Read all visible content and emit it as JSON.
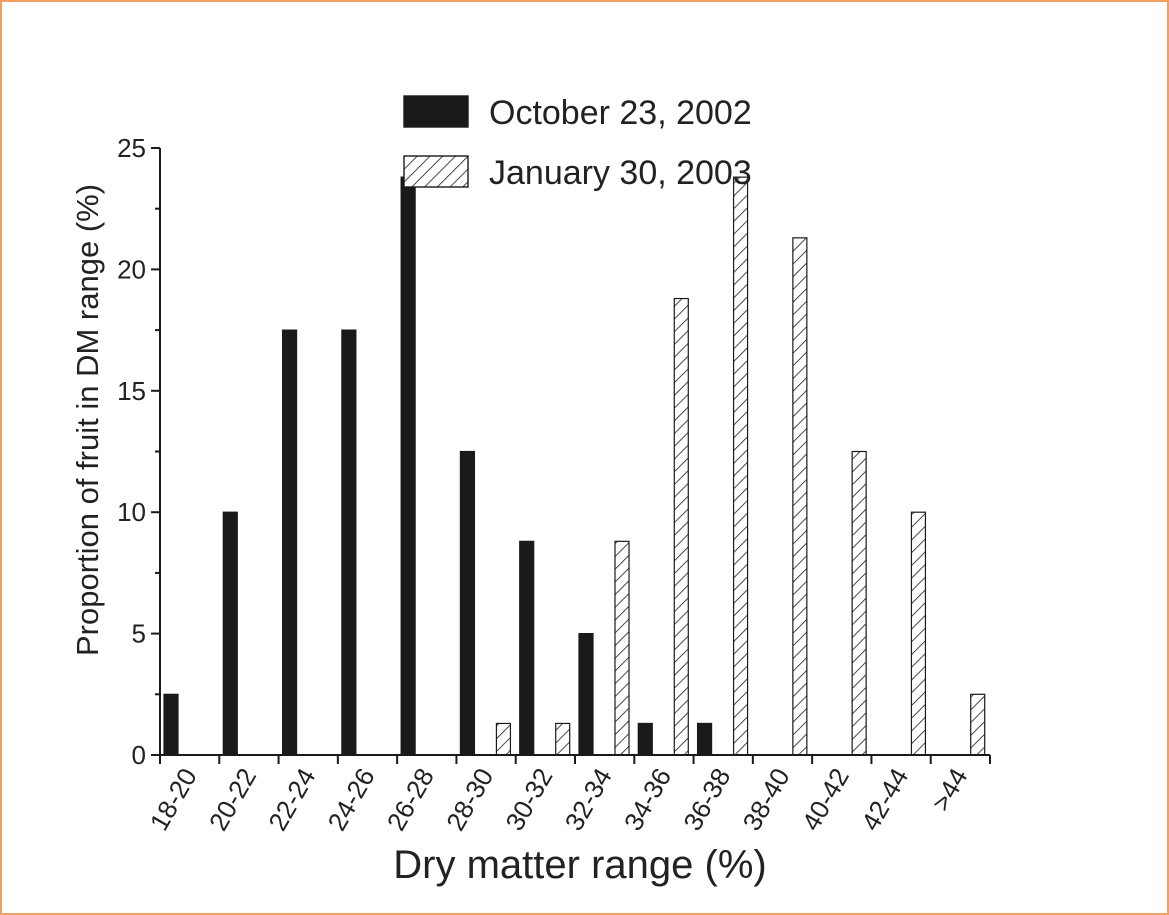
{
  "chart_data": {
    "type": "bar",
    "xlabel": "Dry matter range (%)",
    "ylabel": "Proportion of fruit in DM range (%)",
    "categories": [
      "18-20",
      "20-22",
      "22-24",
      "24-26",
      "26-28",
      "28-30",
      "30-32",
      "32-34",
      "34-36",
      "36-38",
      "38-40",
      "40-42",
      "42-44",
      ">44"
    ],
    "ylim": [
      0,
      25
    ],
    "yticks": [
      0,
      5,
      10,
      15,
      20,
      25
    ],
    "legend_position": "top-center",
    "series": [
      {
        "name": "October 23, 2002",
        "fill": "solid",
        "color": "#1a1a1a",
        "values": [
          2.5,
          10,
          17.5,
          17.5,
          23.8,
          12.5,
          8.8,
          5,
          1.3,
          1.3,
          0,
          0,
          0,
          0
        ]
      },
      {
        "name": "January 30, 2003",
        "fill": "hatched",
        "color": "#1a1a1a",
        "values": [
          0,
          0,
          0,
          0,
          0,
          1.3,
          1.3,
          8.8,
          18.8,
          23.8,
          21.3,
          12.5,
          10,
          2.5
        ]
      }
    ],
    "grid": false
  },
  "frame": {
    "border_color": "#f0a060"
  }
}
